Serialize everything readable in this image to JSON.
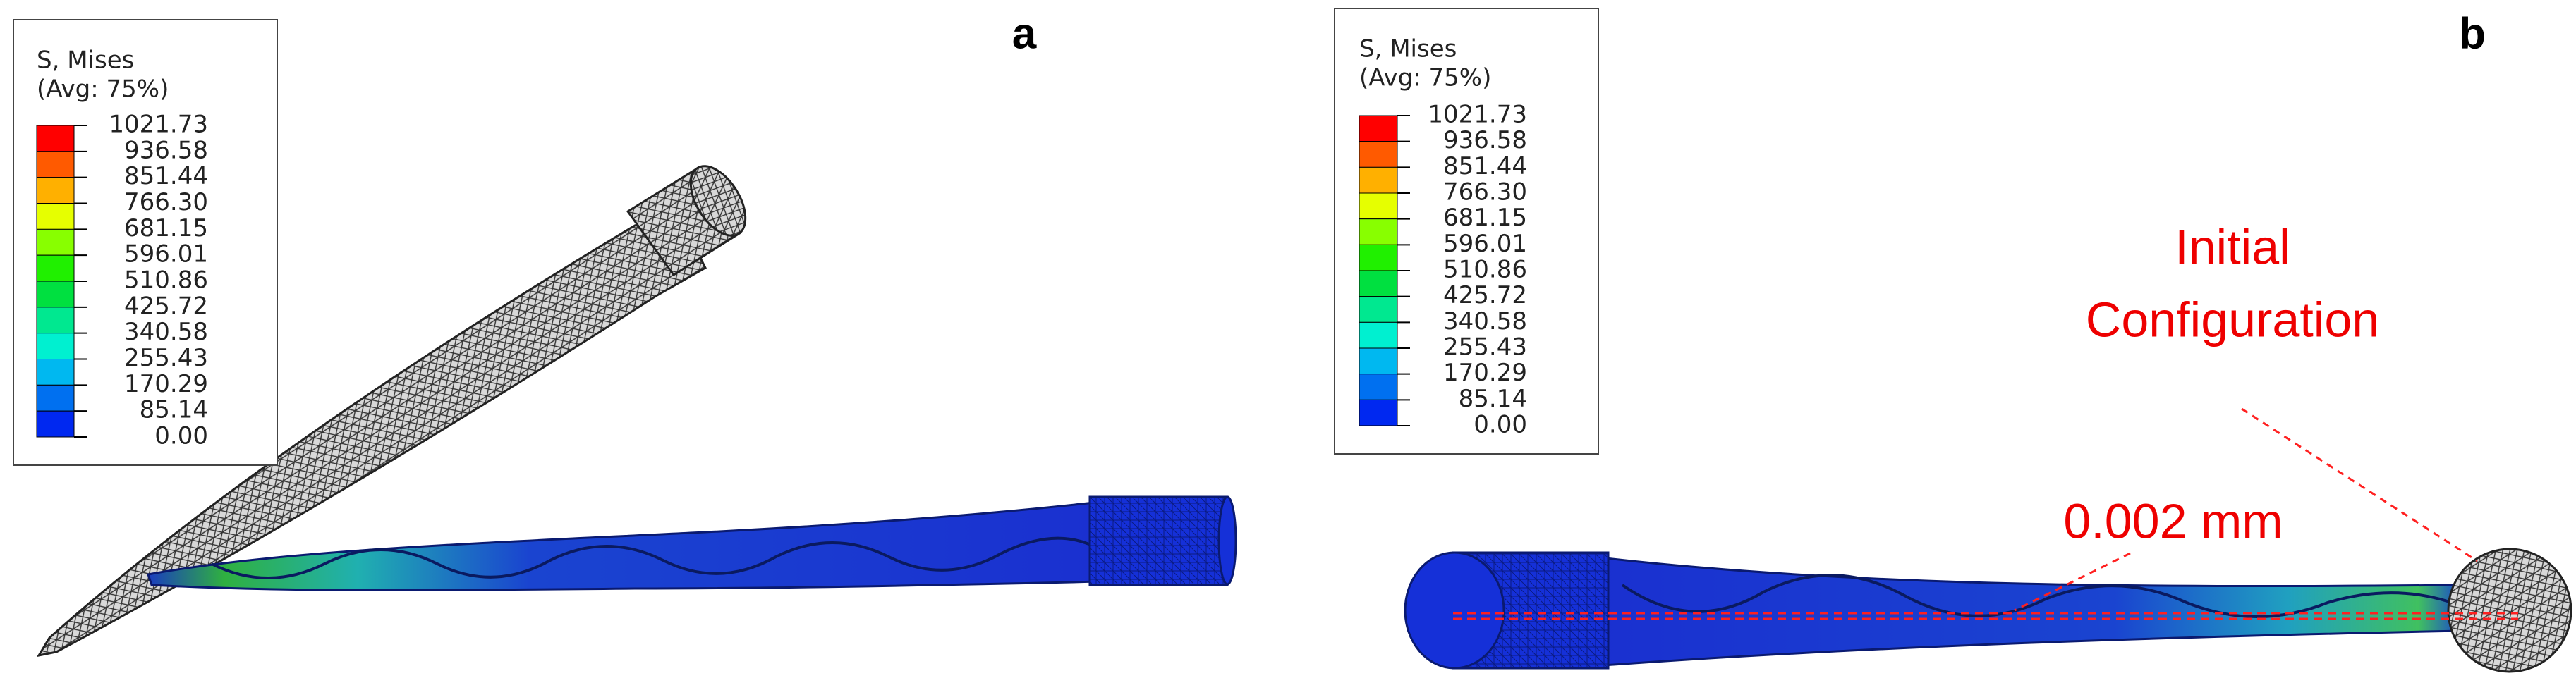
{
  "panels": [
    {
      "label": "a",
      "legend": {
        "title": "S, Mises",
        "subtitle": "(Avg: 75%)",
        "levels": [
          "1021.73",
          "936.58",
          "851.44",
          "766.30",
          "681.15",
          "596.01",
          "510.86",
          "425.72",
          "340.58",
          "255.43",
          "170.29",
          "85.14",
          "0.00"
        ]
      }
    },
    {
      "label": "b",
      "legend": {
        "title": "S, Mises",
        "subtitle": "(Avg: 75%)",
        "levels": [
          "1021.73",
          "936.58",
          "851.44",
          "766.30",
          "681.15",
          "596.01",
          "510.86",
          "425.72",
          "340.58",
          "255.43",
          "170.29",
          "85.14",
          "0.00"
        ]
      }
    }
  ],
  "annotations": {
    "initial_configuration": [
      "Initial",
      "Configuration"
    ],
    "offset": "0.002 mm"
  }
}
